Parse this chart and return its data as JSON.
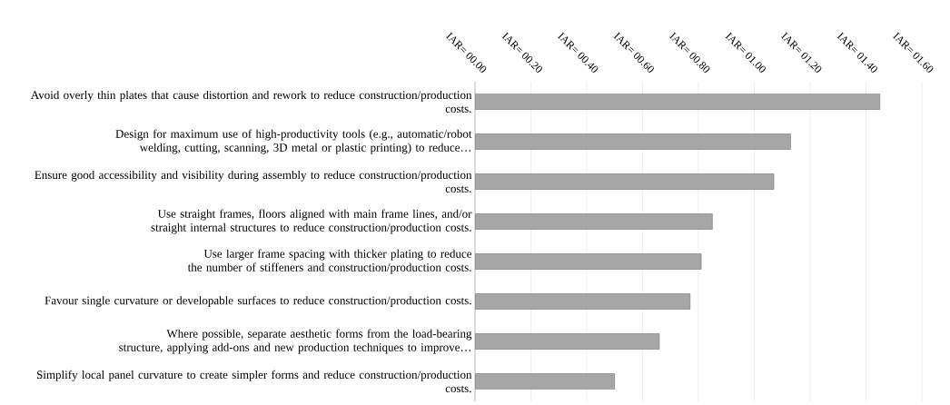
{
  "chart_data": {
    "type": "bar",
    "orientation": "horizontal",
    "categories": [
      "Avoid overly thin plates that cause distortion and rework to reduce construction/production costs.",
      "Design for maximum use of high-productivity tools (e.g., automatic/robot welding, cutting, scanning, 3D metal or plastic printing) to reduce…",
      "Ensure good accessibility and visibility during assembly to reduce construction/production costs.",
      "Use straight frames, floors aligned with main frame lines, and/or straight internal structures to reduce construction/production costs.",
      "Use larger frame spacing with thicker plating to reduce the number of stiffeners and construction/production costs.",
      "Favour single curvature or developable surfaces to reduce construction/production costs.",
      "Where possible, separate aesthetic forms from the load-bearing structure, applying add-ons and new production techniques to improve…",
      "Simplify local panel curvature to create simpler forms and reduce construction/production costs."
    ],
    "values": [
      1.45,
      1.13,
      1.07,
      0.85,
      0.81,
      0.77,
      0.66,
      0.5
    ],
    "color": "#a6a6a6",
    "xlim": [
      0,
      1.6
    ],
    "xticks": [
      {
        "value": 0,
        "label": "IAR= 00.00"
      },
      {
        "value": 0.2,
        "label": "IAR= 00.20"
      },
      {
        "value": 0.4,
        "label": "IAR= 00.40"
      },
      {
        "value": 0.6,
        "label": "IAR= 00.60"
      },
      {
        "value": 0.8,
        "label": "IAR= 00.80"
      },
      {
        "value": 1.0,
        "label": "IAR= 01.00"
      },
      {
        "value": 1.2,
        "label": "IAR= 01.20"
      },
      {
        "value": 1.4,
        "label": "IAR= 01.40"
      },
      {
        "value": 1.6,
        "label": "IAR= 01.60"
      }
    ],
    "grid": "x"
  }
}
